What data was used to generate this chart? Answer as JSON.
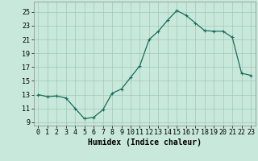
{
  "x_values": [
    0,
    1,
    2,
    3,
    4,
    5,
    6,
    7,
    8,
    9,
    10,
    11,
    12,
    13,
    14,
    15,
    16,
    17,
    18,
    19,
    20,
    21,
    22,
    23
  ],
  "y_values": [
    13.0,
    12.7,
    12.8,
    12.5,
    11.0,
    9.5,
    9.7,
    10.8,
    13.2,
    13.8,
    15.5,
    17.2,
    21.0,
    22.2,
    23.8,
    25.2,
    24.5,
    23.4,
    22.3,
    22.2,
    22.2,
    21.3,
    16.1,
    15.8
  ],
  "xlabel": "Humidex (Indice chaleur)",
  "xlim": [
    -0.5,
    23.5
  ],
  "ylim": [
    8.5,
    26.5
  ],
  "yticks": [
    9,
    11,
    13,
    15,
    17,
    19,
    21,
    23,
    25
  ],
  "xticks": [
    0,
    1,
    2,
    3,
    4,
    5,
    6,
    7,
    8,
    9,
    10,
    11,
    12,
    13,
    14,
    15,
    16,
    17,
    18,
    19,
    20,
    21,
    22,
    23
  ],
  "line_color": "#1a6b5a",
  "marker": "+",
  "bg_color": "#c8e8dc",
  "grid_color": "#a0c8b8",
  "axis_label_fontsize": 7,
  "tick_fontsize": 6
}
